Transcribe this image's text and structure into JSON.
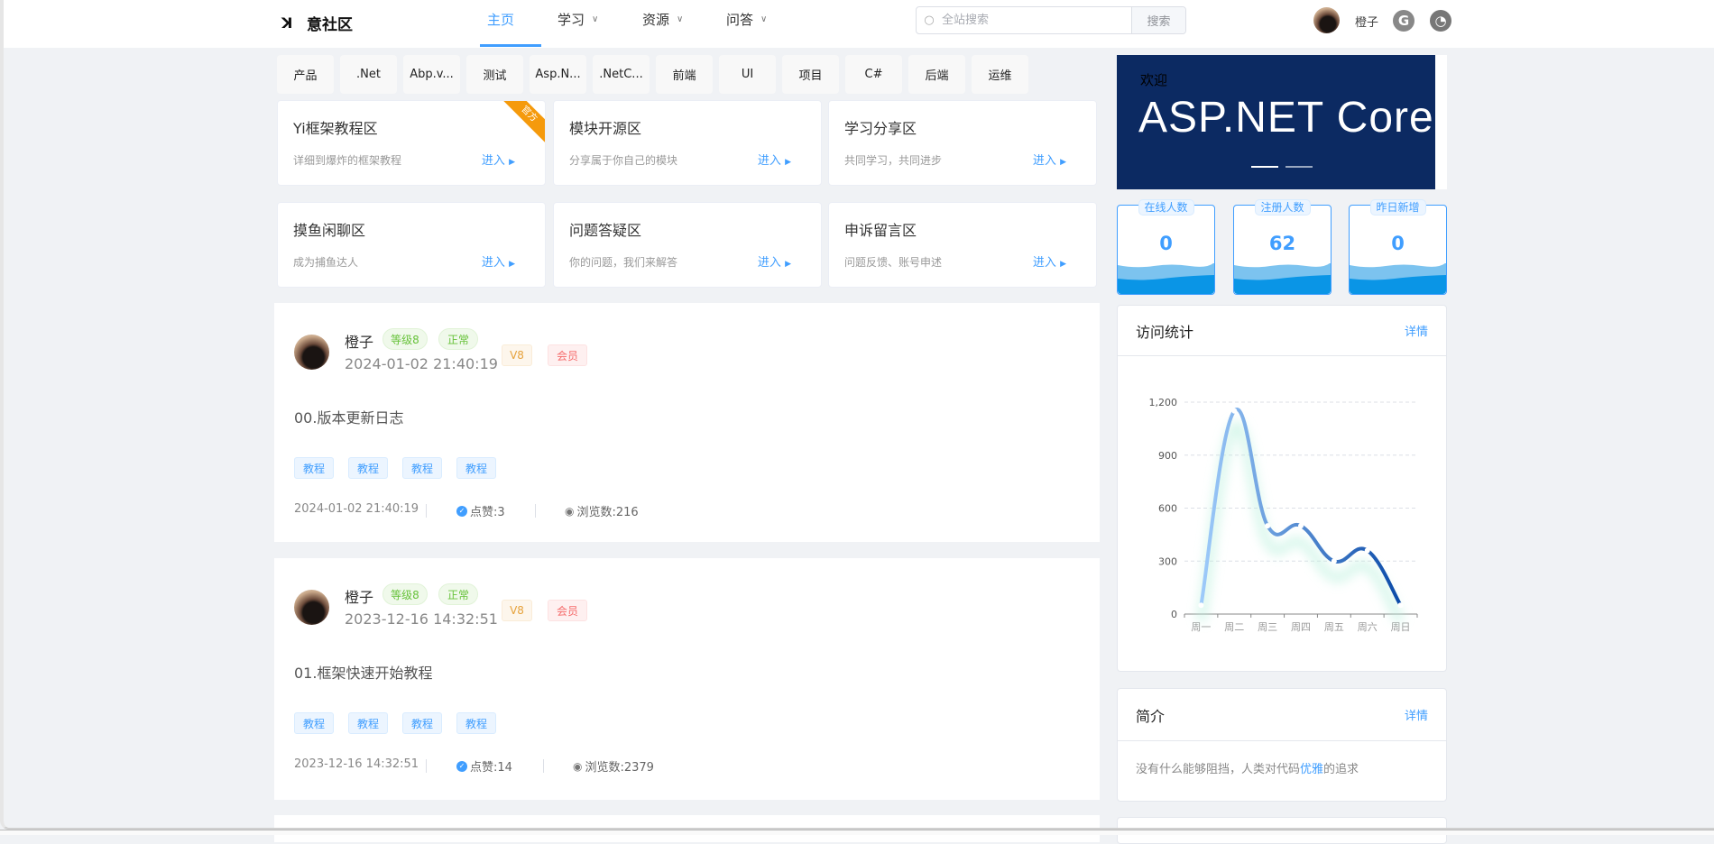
{
  "header": {
    "logo_text": "意社区",
    "nav": [
      {
        "label": "主页",
        "active": true,
        "dropdown": false
      },
      {
        "label": "学习",
        "dropdown": true
      },
      {
        "label": "资源",
        "dropdown": true
      },
      {
        "label": "问答",
        "dropdown": true
      }
    ],
    "search_placeholder": "全站搜索",
    "search_button": "搜索",
    "username": "橙子",
    "icons": [
      "gitee-icon",
      "github-icon"
    ]
  },
  "categories": [
    "产品",
    ".Net",
    "Abp.v...",
    "测试",
    "Asp.N...",
    ".NetC...",
    "前端",
    "UI",
    "项目",
    "C#",
    "后端",
    "运维"
  ],
  "zones": [
    {
      "title": "Yi框架教程区",
      "desc": "详细到爆炸的框架教程",
      "enter": "进入",
      "ribbon": "官方"
    },
    {
      "title": "模块开源区",
      "desc": "分享属于你自己的模块",
      "enter": "进入"
    },
    {
      "title": "学习分享区",
      "desc": "共同学习，共同进步",
      "enter": "进入"
    },
    {
      "title": "摸鱼闲聊区",
      "desc": "成为捕鱼达人",
      "enter": "进入"
    },
    {
      "title": "问题答疑区",
      "desc": "你的问题，我们来解答",
      "enter": "进入"
    },
    {
      "title": "申诉留言区",
      "desc": "问题反馈、账号申述",
      "enter": "进入"
    }
  ],
  "posts": [
    {
      "author": "橙子",
      "level": "等级8",
      "status": "正常",
      "created": "2024-01-02 21:40:19",
      "vip": "V8",
      "member": "会员",
      "title": "00.版本更新日志",
      "tags": [
        "教程",
        "教程",
        "教程",
        "教程"
      ],
      "footer_date": "2024-01-02 21:40:19",
      "likes": "点赞:3",
      "views": "浏览数:216"
    },
    {
      "author": "橙子",
      "level": "等级8",
      "status": "正常",
      "created": "2023-12-16 14:32:51",
      "vip": "V8",
      "member": "会员",
      "title": "01.框架快速开始教程",
      "tags": [
        "教程",
        "教程",
        "教程",
        "教程"
      ],
      "footer_date": "2023-12-16 14:32:51",
      "likes": "点赞:14",
      "views": "浏览数:2379"
    }
  ],
  "banner": {
    "welcome": "欢迎",
    "logo_text": "ASP.NET Core",
    "slides": 2,
    "active_slide": 0,
    "bg": "#0c2a62"
  },
  "stats": [
    {
      "label": "在线人数",
      "value": "0"
    },
    {
      "label": "注册人数",
      "value": "62"
    },
    {
      "label": "昨日新增",
      "value": "0"
    }
  ],
  "visits": {
    "title": "访问统计",
    "more": "详情",
    "chart_data": {
      "type": "line",
      "smooth": true,
      "categories": [
        "周一",
        "周二",
        "周三",
        "周四",
        "周五",
        "周六",
        "周日"
      ],
      "values": [
        50,
        1150,
        500,
        500,
        300,
        360,
        50
      ],
      "yticks": [
        "0",
        "300",
        "600",
        "900",
        "1,200"
      ],
      "ylim": [
        0,
        1200
      ],
      "grid": true,
      "colors": [
        "#9ecbfa",
        "#0a4aa8"
      ]
    }
  },
  "intro": {
    "title": "简介",
    "more": "详情",
    "text_before": "没有什么能够阻挡，人类对代码",
    "highlight": "优雅",
    "text_after": "的追求"
  },
  "colors": {
    "accent": "#409eff",
    "bg": "#f0f2f5"
  }
}
